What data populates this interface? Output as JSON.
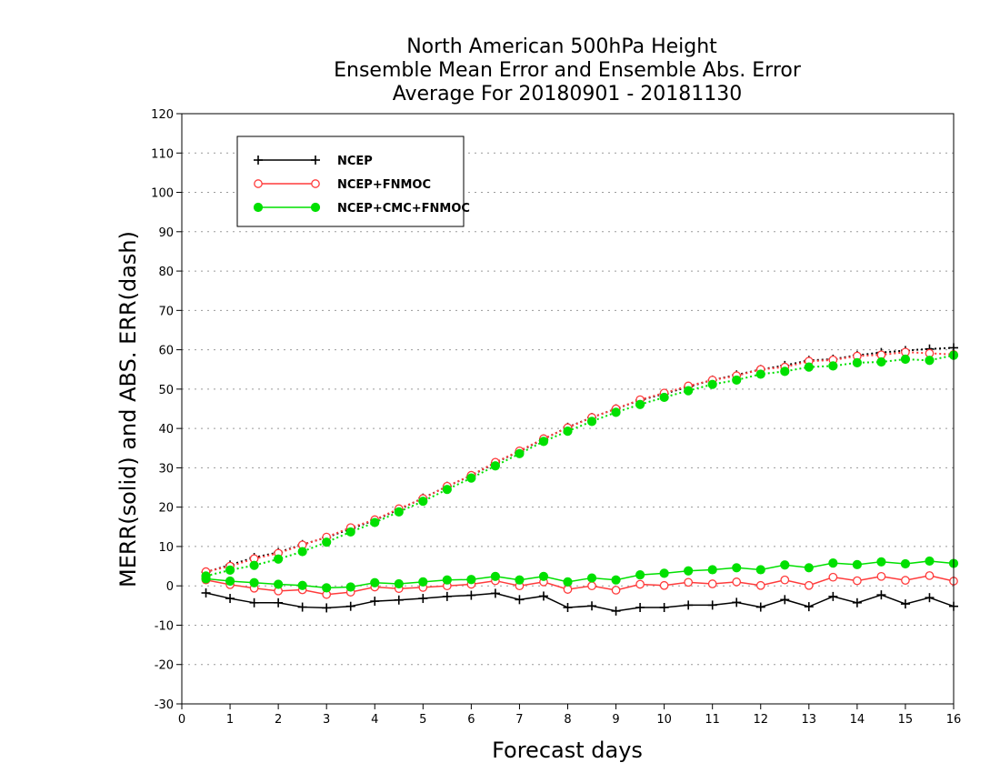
{
  "chart_data": {
    "type": "line",
    "title_lines": [
      "North American 500hPa Height",
      "Ensemble Mean Error and Ensemble Abs. Error",
      "Average For 20180901 - 20181130"
    ],
    "xlabel": "Forecast days",
    "ylabel": "MERR(solid) and ABS. ERR(dash)",
    "xlim": [
      0,
      16
    ],
    "ylim": [
      -30,
      120
    ],
    "x_ticks": [
      0,
      1,
      2,
      3,
      4,
      5,
      6,
      7,
      8,
      9,
      10,
      11,
      12,
      13,
      14,
      15,
      16
    ],
    "y_ticks": [
      -30,
      -20,
      -10,
      0,
      10,
      20,
      30,
      40,
      50,
      60,
      70,
      80,
      90,
      100,
      110,
      120
    ],
    "grid": true,
    "legend_position": "top-left",
    "x": [
      0.5,
      1,
      1.5,
      2,
      2.5,
      3,
      3.5,
      4,
      4.5,
      5,
      5.5,
      6,
      6.5,
      7,
      7.5,
      8,
      8.5,
      9,
      9.5,
      10,
      10.5,
      11,
      11.5,
      12,
      12.5,
      13,
      13.5,
      14,
      14.5,
      15,
      15.5,
      16
    ],
    "series": [
      {
        "name": "NCEP",
        "color": "#000000",
        "marker": "plus",
        "mean_error": [
          -1.8,
          -3.2,
          -4.3,
          -4.3,
          -5.4,
          -5.6,
          -5.2,
          -3.9,
          -3.6,
          -3.2,
          -2.7,
          -2.4,
          -1.9,
          -3.5,
          -2.6,
          -5.5,
          -5.1,
          -6.4,
          -5.5,
          -5.5,
          -4.9,
          -4.9,
          -4.2,
          -5.4,
          -3.5,
          -5.3,
          -2.7,
          -4.3,
          -2.3,
          -4.6,
          -3.0,
          -5.2
        ],
        "abs_error": [
          3.5,
          5.3,
          7.2,
          8.5,
          10.5,
          12.3,
          14.5,
          16.7,
          19.4,
          22.3,
          25.3,
          28.0,
          31.3,
          34.2,
          37.3,
          40.3,
          42.8,
          45.0,
          47.2,
          48.8,
          50.6,
          52.3,
          53.6,
          55.0,
          56.0,
          57.3,
          57.6,
          58.6,
          59.3,
          59.8,
          60.2,
          60.5
        ]
      },
      {
        "name": "NCEP+FNMOC",
        "color": "#ff3b3b",
        "marker": "open-circle",
        "mean_error": [
          1.5,
          0.3,
          -0.6,
          -1.3,
          -1.0,
          -2.2,
          -1.6,
          -0.3,
          -0.7,
          -0.4,
          0.0,
          0.4,
          1.3,
          0.0,
          1.0,
          -0.9,
          0.0,
          -1.1,
          0.4,
          0.1,
          0.9,
          0.5,
          1.0,
          0.1,
          1.5,
          0.1,
          2.2,
          1.3,
          2.4,
          1.4,
          2.6,
          1.2
        ],
        "abs_error": [
          3.6,
          5.0,
          6.9,
          8.3,
          10.4,
          12.4,
          14.8,
          16.8,
          19.6,
          22.2,
          25.3,
          28.1,
          31.4,
          34.3,
          37.4,
          40.2,
          42.8,
          45.0,
          47.3,
          49.0,
          50.8,
          52.3,
          53.4,
          55.0,
          55.6,
          57.1,
          57.4,
          58.4,
          58.7,
          59.4,
          59.1,
          58.8
        ]
      },
      {
        "name": "NCEP+CMC+FNMOC",
        "color": "#00e000",
        "marker": "filled-circle",
        "mean_error": [
          1.8,
          1.2,
          0.8,
          0.4,
          0.1,
          -0.5,
          -0.3,
          0.8,
          0.5,
          1.0,
          1.5,
          1.6,
          2.4,
          1.5,
          2.4,
          1.0,
          2.0,
          1.5,
          2.8,
          3.2,
          3.8,
          4.1,
          4.6,
          4.1,
          5.3,
          4.6,
          5.8,
          5.4,
          6.1,
          5.6,
          6.3,
          5.7
        ],
        "abs_error": [
          2.5,
          4.0,
          5.2,
          6.8,
          8.7,
          11.1,
          13.7,
          16.1,
          18.8,
          21.5,
          24.5,
          27.4,
          30.5,
          33.6,
          36.7,
          39.3,
          41.8,
          44.1,
          46.1,
          47.9,
          49.6,
          51.2,
          52.3,
          53.8,
          54.5,
          55.6,
          55.9,
          56.7,
          56.9,
          57.6,
          57.3,
          58.6
        ]
      }
    ]
  }
}
